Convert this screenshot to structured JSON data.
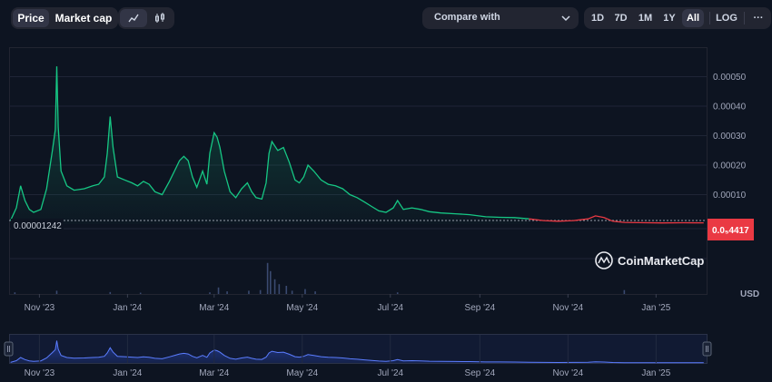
{
  "toolbar": {
    "price_label": "Price",
    "market_cap_label": "Market cap",
    "compare_label": "Compare with",
    "ranges": [
      "1D",
      "7D",
      "1M",
      "1Y",
      "All"
    ],
    "active_range": "All",
    "log_label": "LOG",
    "more_label": "···"
  },
  "colors": {
    "up": "#16c784",
    "down": "#ea3943",
    "background": "#0d1421",
    "volume": "#3a4a70",
    "navigator": "#3861fb"
  },
  "watermark": "CoinMarketCap",
  "chart_data": {
    "type": "line",
    "title": "",
    "xlabel": "",
    "ylabel": "",
    "currency": "USD",
    "yticks": [
      "0.00010",
      "0.00020",
      "0.00030",
      "0.00040",
      "0.00050"
    ],
    "ylim": [
      0,
      0.0006
    ],
    "reference_label": "0.00001242",
    "reference_value": 1.242e-05,
    "current_price_label": "0.0₅4417",
    "current_price_value": 4.417e-06,
    "xticks": [
      "Nov '23",
      "Jan '24",
      "Mar '24",
      "May '24",
      "Jul '24",
      "Sep '24",
      "Nov '24",
      "Jan '25"
    ],
    "navigator_xticks": [
      "Nov '23",
      "Jan '24",
      "Mar '24",
      "May '24",
      "Jul '24",
      "Sep '24",
      "Nov '24",
      "Jan '25"
    ],
    "series": [
      {
        "values": [
          [
            "2023-10-12",
            1.24e-05
          ],
          [
            "2023-10-16",
            5.5e-05
          ],
          [
            "2023-10-19",
            0.00013
          ],
          [
            "2023-10-22",
            8e-05
          ],
          [
            "2023-10-25",
            5e-05
          ],
          [
            "2023-10-28",
            4e-05
          ],
          [
            "2023-11-02",
            5e-05
          ],
          [
            "2023-11-06",
            0.00012
          ],
          [
            "2023-11-10",
            0.00025
          ],
          [
            "2023-11-12",
            0.00032
          ],
          [
            "2023-11-13",
            0.000535
          ],
          [
            "2023-11-14",
            0.00033
          ],
          [
            "2023-11-16",
            0.00018
          ],
          [
            "2023-11-20",
            0.00013
          ],
          [
            "2023-11-25",
            0.000115
          ],
          [
            "2023-12-02",
            0.00012
          ],
          [
            "2023-12-08",
            0.00013
          ],
          [
            "2023-12-12",
            0.000135
          ],
          [
            "2023-12-16",
            0.00016
          ],
          [
            "2023-12-18",
            0.00024
          ],
          [
            "2023-12-20",
            0.000365
          ],
          [
            "2023-12-22",
            0.00026
          ],
          [
            "2023-12-25",
            0.00016
          ],
          [
            "2023-12-30",
            0.00015
          ],
          [
            "2024-01-04",
            0.00014
          ],
          [
            "2024-01-08",
            0.00013
          ],
          [
            "2024-01-12",
            0.000145
          ],
          [
            "2024-01-16",
            0.000135
          ],
          [
            "2024-01-20",
            0.00011
          ],
          [
            "2024-01-25",
            0.0001
          ],
          [
            "2024-01-30",
            0.000145
          ],
          [
            "2024-02-03",
            0.000185
          ],
          [
            "2024-02-06",
            0.000215
          ],
          [
            "2024-02-09",
            0.00023
          ],
          [
            "2024-02-12",
            0.000215
          ],
          [
            "2024-02-15",
            0.00016
          ],
          [
            "2024-02-18",
            0.000125
          ],
          [
            "2024-02-22",
            0.00018
          ],
          [
            "2024-02-25",
            0.000135
          ],
          [
            "2024-02-27",
            0.00024
          ],
          [
            "2024-03-01",
            0.00031
          ],
          [
            "2024-03-03",
            0.000295
          ],
          [
            "2024-03-05",
            0.00026
          ],
          [
            "2024-03-08",
            0.00018
          ],
          [
            "2024-03-12",
            0.00011
          ],
          [
            "2024-03-16",
            9e-05
          ],
          [
            "2024-03-20",
            0.00012
          ],
          [
            "2024-03-24",
            0.00014
          ],
          [
            "2024-03-27",
            0.00011
          ],
          [
            "2024-03-30",
            9e-05
          ],
          [
            "2024-04-03",
            8.5e-05
          ],
          [
            "2024-04-06",
            0.00014
          ],
          [
            "2024-04-08",
            0.00024
          ],
          [
            "2024-04-10",
            0.00028
          ],
          [
            "2024-04-14",
            0.00025
          ],
          [
            "2024-04-18",
            0.00026
          ],
          [
            "2024-04-22",
            0.00021
          ],
          [
            "2024-04-26",
            0.00015
          ],
          [
            "2024-04-29",
            0.00014
          ],
          [
            "2024-05-02",
            0.00016
          ],
          [
            "2024-05-05",
            0.0002
          ],
          [
            "2024-05-09",
            0.00018
          ],
          [
            "2024-05-14",
            0.00015
          ],
          [
            "2024-05-19",
            0.000135
          ],
          [
            "2024-05-24",
            0.00013
          ],
          [
            "2024-05-29",
            0.00012
          ],
          [
            "2024-06-03",
            0.0001
          ],
          [
            "2024-06-08",
            9e-05
          ],
          [
            "2024-06-13",
            7.5e-05
          ],
          [
            "2024-06-18",
            6e-05
          ],
          [
            "2024-06-23",
            4.5e-05
          ],
          [
            "2024-06-28",
            4e-05
          ],
          [
            "2024-07-03",
            5.5e-05
          ],
          [
            "2024-07-06",
            8e-05
          ],
          [
            "2024-07-10",
            5e-05
          ],
          [
            "2024-07-16",
            5.5e-05
          ],
          [
            "2024-07-22",
            5e-05
          ],
          [
            "2024-07-28",
            4.2e-05
          ],
          [
            "2024-08-05",
            3.8e-05
          ],
          [
            "2024-08-15",
            3.5e-05
          ],
          [
            "2024-08-25",
            3.2e-05
          ],
          [
            "2024-09-05",
            2.5e-05
          ],
          [
            "2024-09-15",
            2.3e-05
          ],
          [
            "2024-09-25",
            2.2e-05
          ],
          [
            "2024-10-05",
            1.8e-05
          ],
          [
            "2024-10-15",
            1.2e-05
          ],
          [
            "2024-10-25",
            1e-05
          ],
          [
            "2024-11-05",
            1.2e-05
          ],
          [
            "2024-11-15",
            1.8e-05
          ],
          [
            "2024-11-20",
            2.8e-05
          ],
          [
            "2024-11-26",
            2.2e-05
          ],
          [
            "2024-12-02",
            1e-05
          ],
          [
            "2024-12-10",
            6e-06
          ],
          [
            "2024-12-20",
            5e-06
          ],
          [
            "2025-01-05",
            4e-06
          ],
          [
            "2025-01-20",
            4.5e-06
          ],
          [
            "2025-02-03",
            4.417e-06
          ]
        ]
      }
    ],
    "volume": [
      [
        "2023-10-15",
        0.05
      ],
      [
        "2023-11-13",
        0.1
      ],
      [
        "2023-12-20",
        0.06
      ],
      [
        "2024-01-10",
        0.04
      ],
      [
        "2024-02-27",
        0.05
      ],
      [
        "2024-03-04",
        0.2
      ],
      [
        "2024-03-10",
        0.08
      ],
      [
        "2024-03-25",
        0.1
      ],
      [
        "2024-04-02",
        0.12
      ],
      [
        "2024-04-07",
        0.95
      ],
      [
        "2024-04-09",
        0.7
      ],
      [
        "2024-04-12",
        0.45
      ],
      [
        "2024-04-15",
        0.3
      ],
      [
        "2024-04-20",
        0.25
      ],
      [
        "2024-04-24",
        0.1
      ],
      [
        "2024-05-03",
        0.15
      ],
      [
        "2024-05-10",
        0.08
      ],
      [
        "2024-07-06",
        0.05
      ],
      [
        "2024-12-10",
        0.12
      ]
    ]
  }
}
